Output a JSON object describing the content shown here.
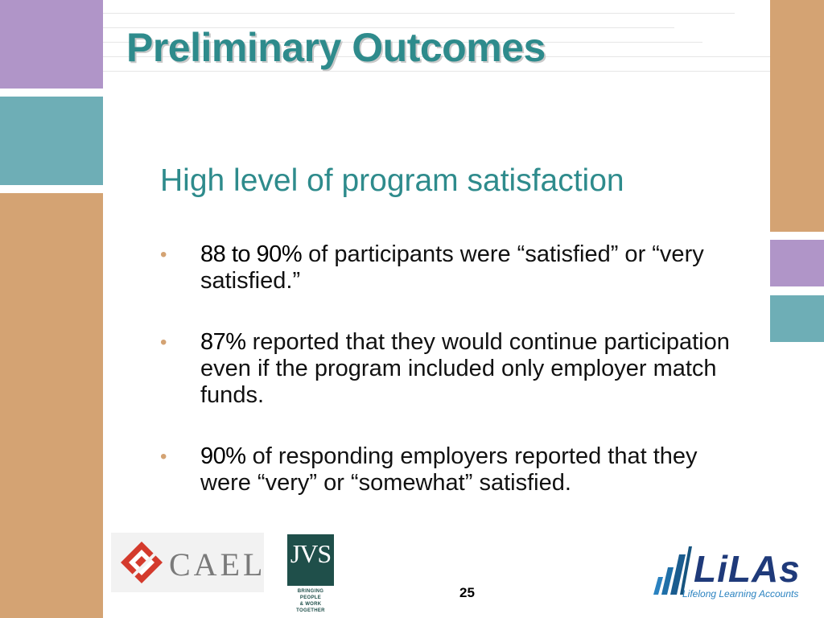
{
  "slide": {
    "title": "Preliminary Outcomes",
    "subtitle": "High level of program satisfaction",
    "bullets": [
      {
        "strong": "88 to 90%",
        "text": " of participants were “satisfied” or “very satisfied.”"
      },
      {
        "strong": "87%",
        "text": " reported that they would continue participation even if the program included only employer match funds."
      },
      {
        "strong": "90%",
        "text": " of responding employers reported that they were “very” or “somewhat” satisfied."
      }
    ],
    "bullet_char": "•",
    "page_number": "25"
  },
  "logos": {
    "cael": {
      "text": "CAEL"
    },
    "jvs": {
      "text": "JVS",
      "tagline_1": "BRINGING PEOPLE",
      "tagline_2": "& WORK TOGETHER"
    },
    "lilas": {
      "text": "LiLAs",
      "tagline": "Lifelong Learning Accounts"
    }
  },
  "colors": {
    "title": "#2e8b8c",
    "tan": "#d4a373",
    "purple": "#b095c8",
    "teal": "#6eaeb6",
    "bullet": "#d4a373"
  }
}
